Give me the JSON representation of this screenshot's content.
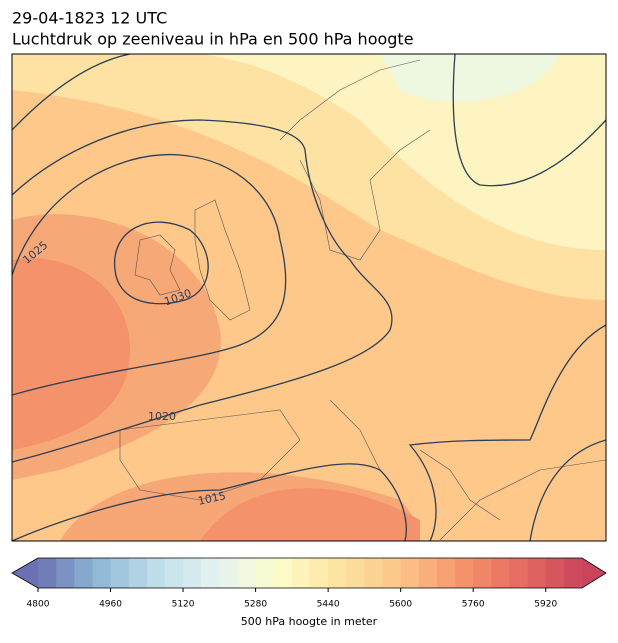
{
  "header": {
    "title_line1": "29-04-1823 12 UTC",
    "title_line2": "Luchtdruk op zeeniveau in hPa en 500 hPa hoogte"
  },
  "map": {
    "isobar_labels": [
      "1025",
      "1030",
      "1020",
      "1015"
    ]
  },
  "colorbar": {
    "label": "500 hPa hoogte in meter",
    "lim": [
      4800,
      6000
    ],
    "step": 40,
    "ticks": [
      4800,
      4960,
      5120,
      5280,
      5440,
      5600,
      5760,
      5920
    ],
    "colors": [
      "#6a72b4",
      "#8fb8d6",
      "#c2e0ec",
      "#e6f4f1",
      "#fdfcc9",
      "#fde3a0",
      "#fcc487",
      "#f5946c",
      "#e56b60",
      "#c9455c"
    ],
    "extend": "both"
  }
}
